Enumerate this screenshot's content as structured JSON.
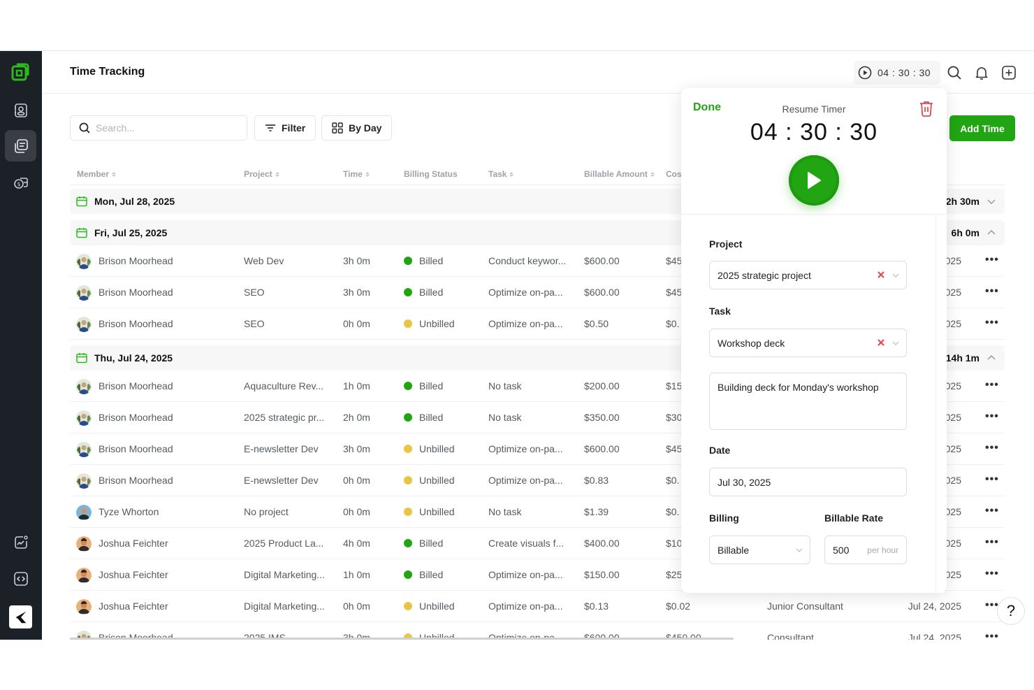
{
  "header": {
    "title": "Time Tracking",
    "timer_display": "04 : 30 : 30",
    "icons": [
      "play-circle-icon",
      "search-icon",
      "bell-icon",
      "plus-square-icon"
    ]
  },
  "sidebar": {
    "logo": "app-logo",
    "items": [
      {
        "name": "contacts",
        "icon": "contact-book-icon",
        "active": false
      },
      {
        "name": "time-tracking",
        "icon": "documents-icon",
        "active": true
      },
      {
        "name": "billing",
        "icon": "money-icon",
        "active": false
      },
      {
        "name": "analytics",
        "icon": "chart-icon",
        "active": false
      },
      {
        "name": "developer",
        "icon": "code-icon",
        "active": false
      }
    ],
    "brand": "brand-logo"
  },
  "toolbar": {
    "search_placeholder": "Search...",
    "filter_label": "Filter",
    "view_label": "By Day",
    "add_time_label": "Add Time"
  },
  "table": {
    "columns": [
      "Member",
      "Project",
      "Time",
      "Billing Status",
      "Task",
      "Billable Amount",
      "Cost"
    ],
    "groups": [
      {
        "date": "Mon, Jul 28, 2025",
        "total": "2h 30m",
        "expanded": false,
        "rows": []
      },
      {
        "date": "Fri, Jul 25, 2025",
        "total": "6h 0m",
        "expanded": true,
        "rows": [
          {
            "member": "Brison Moorhead",
            "project": "Web Dev",
            "time": "3h 0m",
            "status": "Billed",
            "task": "Conduct keywor...",
            "amount": "$600.00",
            "cost": "$45",
            "role": "",
            "date": "025"
          },
          {
            "member": "Brison Moorhead",
            "project": "SEO",
            "time": "3h 0m",
            "status": "Billed",
            "task": "Optimize on-pa...",
            "amount": "$600.00",
            "cost": "$45",
            "role": "",
            "date": "025"
          },
          {
            "member": "Brison Moorhead",
            "project": "SEO",
            "time": "0h 0m",
            "status": "Unbilled",
            "task": "Optimize on-pa...",
            "amount": "$0.50",
            "cost": "$0.",
            "role": "",
            "date": "025"
          }
        ]
      },
      {
        "date": "Thu, Jul 24, 2025",
        "total": "14h 1m",
        "expanded": true,
        "rows": [
          {
            "member": "Brison Moorhead",
            "project": "Aquaculture Rev...",
            "time": "1h 0m",
            "status": "Billed",
            "task": "No task",
            "amount": "$200.00",
            "cost": "$15",
            "role": "",
            "date": "025"
          },
          {
            "member": "Brison Moorhead",
            "project": "2025 strategic pr...",
            "time": "2h 0m",
            "status": "Billed",
            "task": "No task",
            "amount": "$350.00",
            "cost": "$30",
            "role": "",
            "date": "025"
          },
          {
            "member": "Brison Moorhead",
            "project": "E-newsletter Dev",
            "time": "3h 0m",
            "status": "Unbilled",
            "task": "Optimize on-pa...",
            "amount": "$600.00",
            "cost": "$45",
            "role": "",
            "date": "025"
          },
          {
            "member": "Brison Moorhead",
            "project": "E-newsletter Dev",
            "time": "0h 0m",
            "status": "Unbilled",
            "task": "Optimize on-pa...",
            "amount": "$0.83",
            "cost": "$0.",
            "role": "",
            "date": "025"
          },
          {
            "member": "Tyze Whorton",
            "project": "No project",
            "time": "0h 0m",
            "status": "Unbilled",
            "task": "No task",
            "amount": "$1.39",
            "cost": "$0.",
            "role": "",
            "date": "025"
          },
          {
            "member": "Joshua Feichter",
            "project": "2025 Product La...",
            "time": "4h 0m",
            "status": "Billed",
            "task": "Create visuals f...",
            "amount": "$400.00",
            "cost": "$10",
            "role": "",
            "date": "025"
          },
          {
            "member": "Joshua Feichter",
            "project": "Digital Marketing...",
            "time": "1h 0m",
            "status": "Billed",
            "task": "Optimize on-pa...",
            "amount": "$150.00",
            "cost": "$25",
            "role": "",
            "date": "025"
          },
          {
            "member": "Joshua Feichter",
            "project": "Digital Marketing...",
            "time": "0h 0m",
            "status": "Unbilled",
            "task": "Optimize on-pa...",
            "amount": "$0.13",
            "cost": "$0.02",
            "role": "Junior Consultant",
            "date": "Jul 24, 2025"
          },
          {
            "member": "Brison Moorhead",
            "project": "2025 IMS",
            "time": "3h 0m",
            "status": "Unbilled",
            "task": "Optimize on-pa...",
            "amount": "$600.00",
            "cost": "$450.00",
            "role": "Consultant",
            "date": "Jul 24, 2025"
          }
        ]
      }
    ]
  },
  "timer_modal": {
    "done_label": "Done",
    "title": "Resume Timer",
    "time": "04 : 30 : 30",
    "project_label": "Project",
    "project_value": "2025 strategic project",
    "task_label": "Task",
    "task_value": "Workshop deck",
    "notes_value": "Building deck for Monday's workshop",
    "date_label": "Date",
    "date_value": "Jul 30, 2025",
    "billing_label": "Billing",
    "billing_value": "Billable",
    "rate_label": "Billable Rate",
    "rate_value": "500",
    "rate_unit": "per hour"
  },
  "help_label": "?",
  "colors": {
    "accent": "#22a512",
    "sidebar_bg": "#1c2027",
    "billed": "#22a512",
    "unbilled": "#e8c547",
    "danger": "#e5484d"
  }
}
